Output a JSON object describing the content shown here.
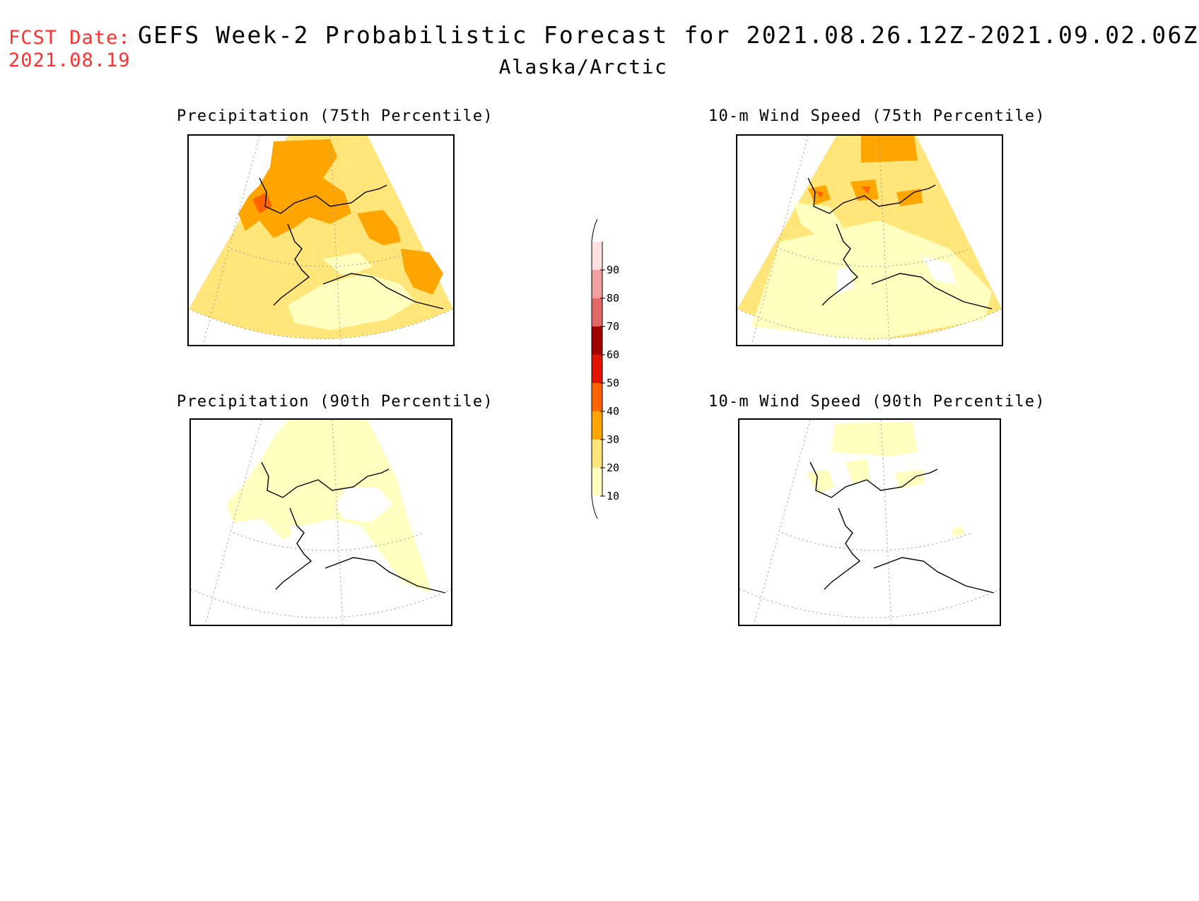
{
  "header": {
    "fcst_label": "FCST Date:",
    "fcst_date": "2021.08.19",
    "title": "GEFS Week-2 Probabilistic Forecast for 2021.08.26.12Z-2021.09.02.06Z",
    "region": "Alaska/Arctic"
  },
  "panels": {
    "precip75": {
      "title": "Precipitation (75th Percentile)"
    },
    "wind75": {
      "title": "10-m Wind Speed (75th Percentile)"
    },
    "precip90": {
      "title": "Precipitation (90th Percentile)"
    },
    "wind90": {
      "title": "10-m Wind Speed (90th Percentile)"
    }
  },
  "colorbar": {
    "levels": [
      {
        "label": "10",
        "color": "#ffffc0"
      },
      {
        "label": "20",
        "color": "#ffe57a"
      },
      {
        "label": "30",
        "color": "#ffa500"
      },
      {
        "label": "40",
        "color": "#ff6400"
      },
      {
        "label": "50",
        "color": "#e01400"
      },
      {
        "label": "60",
        "color": "#a00000"
      },
      {
        "label": "70",
        "color": "#e06868"
      },
      {
        "label": "80",
        "color": "#f0a0a0"
      },
      {
        "label": "90",
        "color": "#ffe0e0"
      }
    ]
  }
}
